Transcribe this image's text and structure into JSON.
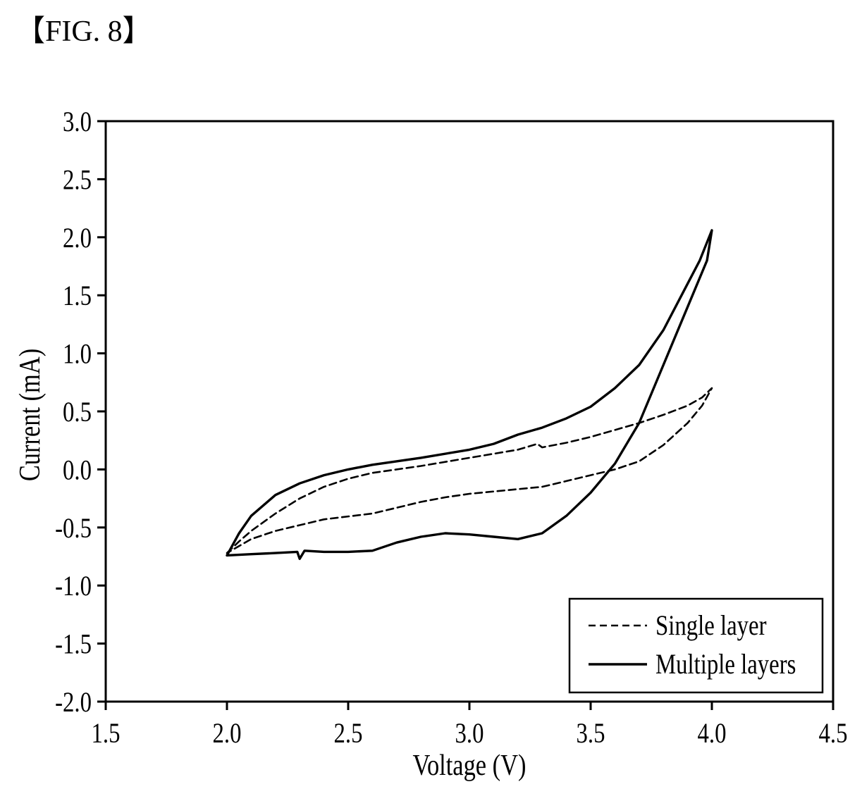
{
  "figure_label": "【FIG. 8】",
  "chart_data": {
    "type": "line",
    "title": "",
    "xlabel": "Voltage (V)",
    "ylabel": "Current (mA)",
    "xlim": [
      1.5,
      4.5
    ],
    "ylim": [
      -2.0,
      3.0
    ],
    "x_ticks": [
      "1.5",
      "2.0",
      "2.5",
      "3.0",
      "3.5",
      "4.0",
      "4.5"
    ],
    "y_ticks": [
      "-2.0",
      "-1.5",
      "-1.0",
      "-0.5",
      "0.0",
      "0.5",
      "1.0",
      "1.5",
      "2.0",
      "2.5",
      "3.0"
    ],
    "grid": false,
    "legend_position": "bottom-right",
    "series": [
      {
        "name": "Single layer",
        "style": "dashed",
        "color": "#000000",
        "points": [
          [
            2.0,
            -0.72
          ],
          [
            2.05,
            -0.62
          ],
          [
            2.1,
            -0.53
          ],
          [
            2.2,
            -0.38
          ],
          [
            2.3,
            -0.25
          ],
          [
            2.4,
            -0.15
          ],
          [
            2.5,
            -0.08
          ],
          [
            2.6,
            -0.03
          ],
          [
            2.8,
            0.03
          ],
          [
            3.0,
            0.1
          ],
          [
            3.2,
            0.17
          ],
          [
            3.28,
            0.22
          ],
          [
            3.3,
            0.19
          ],
          [
            3.4,
            0.23
          ],
          [
            3.5,
            0.28
          ],
          [
            3.6,
            0.34
          ],
          [
            3.7,
            0.4
          ],
          [
            3.8,
            0.47
          ],
          [
            3.9,
            0.55
          ],
          [
            3.96,
            0.62
          ],
          [
            4.0,
            0.7
          ],
          [
            3.96,
            0.55
          ],
          [
            3.9,
            0.4
          ],
          [
            3.8,
            0.21
          ],
          [
            3.7,
            0.07
          ],
          [
            3.6,
            0.0
          ],
          [
            3.5,
            -0.05
          ],
          [
            3.4,
            -0.1
          ],
          [
            3.3,
            -0.15
          ],
          [
            3.2,
            -0.17
          ],
          [
            3.0,
            -0.21
          ],
          [
            2.9,
            -0.24
          ],
          [
            2.8,
            -0.28
          ],
          [
            2.7,
            -0.33
          ],
          [
            2.6,
            -0.38
          ],
          [
            2.4,
            -0.43
          ],
          [
            2.3,
            -0.48
          ],
          [
            2.2,
            -0.53
          ],
          [
            2.1,
            -0.6
          ],
          [
            2.0,
            -0.72
          ]
        ]
      },
      {
        "name": "Multiple layers",
        "style": "solid",
        "color": "#000000",
        "points": [
          [
            2.0,
            -0.74
          ],
          [
            2.05,
            -0.55
          ],
          [
            2.1,
            -0.4
          ],
          [
            2.2,
            -0.22
          ],
          [
            2.3,
            -0.12
          ],
          [
            2.4,
            -0.05
          ],
          [
            2.5,
            0.0
          ],
          [
            2.6,
            0.04
          ],
          [
            2.8,
            0.1
          ],
          [
            3.0,
            0.17
          ],
          [
            3.1,
            0.22
          ],
          [
            3.2,
            0.3
          ],
          [
            3.3,
            0.36
          ],
          [
            3.4,
            0.44
          ],
          [
            3.5,
            0.54
          ],
          [
            3.6,
            0.7
          ],
          [
            3.7,
            0.9
          ],
          [
            3.8,
            1.2
          ],
          [
            3.9,
            1.6
          ],
          [
            3.95,
            1.8
          ],
          [
            4.0,
            2.06
          ],
          [
            3.98,
            1.8
          ],
          [
            3.9,
            1.4
          ],
          [
            3.8,
            0.9
          ],
          [
            3.7,
            0.4
          ],
          [
            3.6,
            0.05
          ],
          [
            3.5,
            -0.2
          ],
          [
            3.4,
            -0.4
          ],
          [
            3.3,
            -0.55
          ],
          [
            3.2,
            -0.6
          ],
          [
            3.1,
            -0.58
          ],
          [
            3.0,
            -0.56
          ],
          [
            2.9,
            -0.55
          ],
          [
            2.8,
            -0.58
          ],
          [
            2.7,
            -0.63
          ],
          [
            2.6,
            -0.7
          ],
          [
            2.5,
            -0.71
          ],
          [
            2.4,
            -0.71
          ],
          [
            2.32,
            -0.7
          ],
          [
            2.3,
            -0.77
          ],
          [
            2.29,
            -0.71
          ],
          [
            2.2,
            -0.72
          ],
          [
            2.1,
            -0.73
          ],
          [
            2.0,
            -0.74
          ]
        ]
      }
    ]
  }
}
